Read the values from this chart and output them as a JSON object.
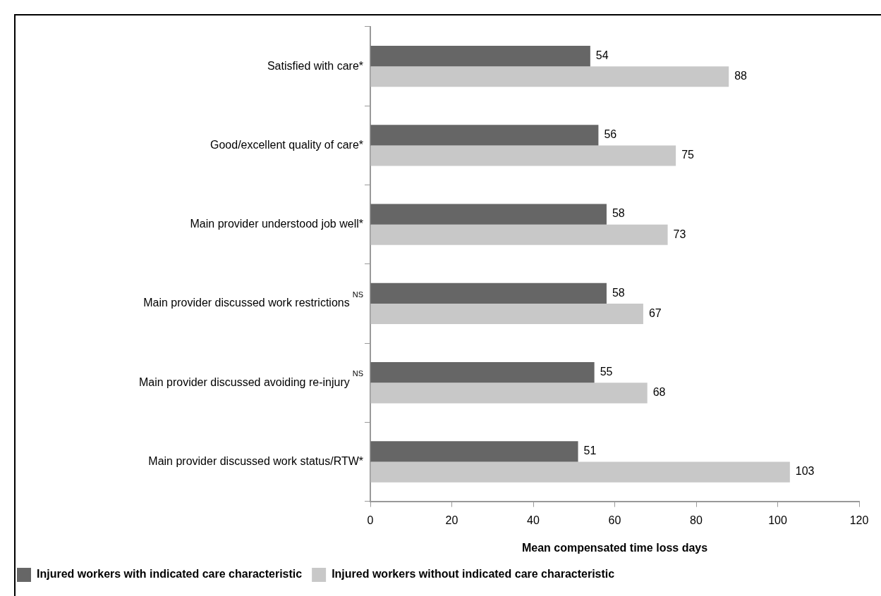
{
  "chart_data": {
    "type": "bar",
    "orientation": "horizontal",
    "categories": [
      "Satisfied with care*",
      "Good/excellent quality of care*",
      "Main provider understood job well*",
      "Main provider discussed work restrictions$^{NS}$",
      "Main provider discussed avoiding re-injury$^{NS}$",
      "Main provider discussed work status/RTW*"
    ],
    "series": [
      {
        "name": "Injured workers with indicated care characteristic",
        "color": "#666666",
        "values": [
          54,
          56,
          58,
          58,
          55,
          51
        ]
      },
      {
        "name": "Injured workers without indicated care characteristic",
        "color": "#c8c8c8",
        "values": [
          88,
          75,
          73,
          67,
          68,
          103
        ]
      }
    ],
    "xlabel": "Mean compensated time loss days",
    "xlim": [
      0,
      120
    ],
    "xticks": [
      0,
      20,
      40,
      60,
      80,
      100,
      120
    ],
    "data_labels": true,
    "grid": false,
    "legend": "bottom"
  }
}
